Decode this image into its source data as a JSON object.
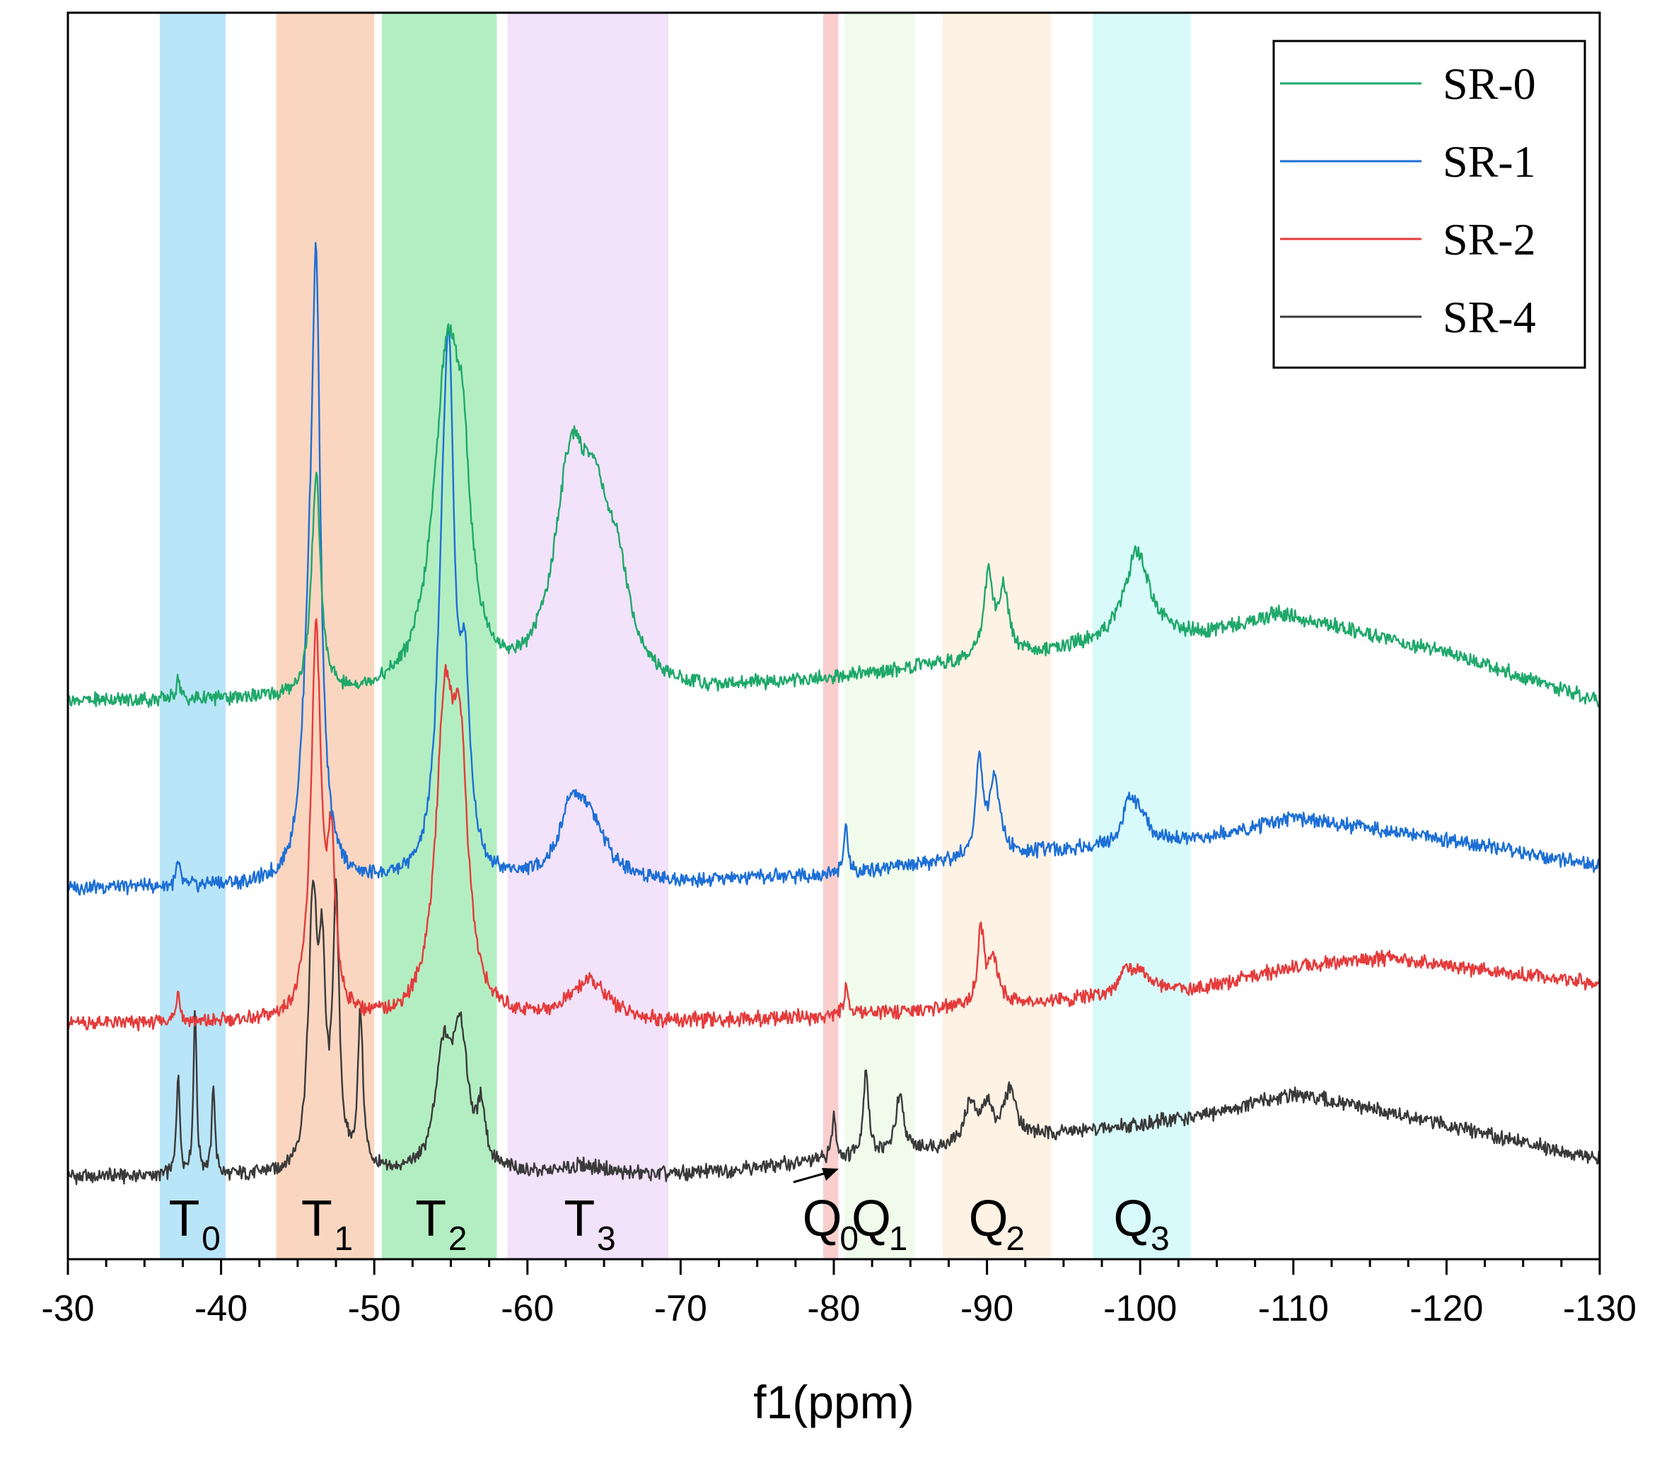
{
  "chart_data": {
    "type": "line",
    "title": "",
    "xlabel": "f1(ppm)",
    "ylabel": "",
    "xlim": [
      -30,
      -130
    ],
    "x_ticks": [
      -30,
      -40,
      -50,
      -60,
      -70,
      -80,
      -90,
      -100,
      -110,
      -120,
      -130
    ],
    "x_tick_labels": [
      "-30",
      "-40",
      "-50",
      "-60",
      "-70",
      "-80",
      "-90",
      "-100",
      "-110",
      "-120",
      "-130"
    ],
    "grid": false,
    "legend_position": "top-right",
    "regions": [
      {
        "main": "T",
        "sub": "0",
        "from": -36.0,
        "to": -40.3,
        "color": "#7fd0f2"
      },
      {
        "main": "T",
        "sub": "1",
        "from": -43.6,
        "to": -50.0,
        "color": "#f6b48c"
      },
      {
        "main": "T",
        "sub": "2",
        "from": -50.5,
        "to": -58.0,
        "color": "#74e08f"
      },
      {
        "main": "T",
        "sub": "3",
        "from": -58.7,
        "to": -69.2,
        "color": "#e8cbf6"
      },
      {
        "main": "Q",
        "sub": "0",
        "from": -79.3,
        "to": -80.3,
        "color": "#f7a5a5"
      },
      {
        "main": "Q",
        "sub": "1",
        "from": -80.7,
        "to": -85.3,
        "color": "#e4f7dc"
      },
      {
        "main": "Q",
        "sub": "2",
        "from": -87.1,
        "to": -94.2,
        "color": "#fde8d0"
      },
      {
        "main": "Q",
        "sub": "3",
        "from": -96.9,
        "to": -103.3,
        "color": "#b8f5f6"
      }
    ],
    "series": [
      {
        "name": "SR-4",
        "color": "#3a3a3a",
        "offset": 0.0,
        "baseline": [
          [
            -30,
            0.0
          ],
          [
            -70,
            0.01
          ],
          [
            -80,
            0.08
          ],
          [
            -90,
            0.16
          ],
          [
            -100,
            0.24
          ],
          [
            -104,
            0.28
          ],
          [
            -110,
            0.38
          ],
          [
            -120,
            0.24
          ],
          [
            -130,
            0.08
          ]
        ],
        "peaks": [
          [
            -37.2,
            0.48,
            0.12
          ],
          [
            -38.3,
            0.78,
            0.12
          ],
          [
            -39.5,
            0.42,
            0.12
          ],
          [
            -46.0,
            1.2,
            0.35
          ],
          [
            -46.6,
            0.8,
            0.25
          ],
          [
            -47.5,
            1.2,
            0.25
          ],
          [
            -49.1,
            0.7,
            0.2
          ],
          [
            -54.5,
            0.5,
            0.6
          ],
          [
            -55.6,
            0.62,
            0.6
          ],
          [
            -57.0,
            0.25,
            0.3
          ],
          [
            -63.8,
            0.04,
            1.5
          ],
          [
            -80.0,
            0.2,
            0.15
          ],
          [
            -82.1,
            0.4,
            0.2
          ],
          [
            -84.3,
            0.25,
            0.3
          ],
          [
            -88.9,
            0.18,
            0.4
          ],
          [
            -90.0,
            0.16,
            0.4
          ],
          [
            -91.5,
            0.22,
            0.5
          ]
        ]
      },
      {
        "name": "SR-2",
        "color": "#e53b3b",
        "offset": 0.7,
        "baseline": [
          [
            -30,
            0.0
          ],
          [
            -70,
            0.0
          ],
          [
            -80,
            0.03
          ],
          [
            -90,
            0.08
          ],
          [
            -100,
            0.13
          ],
          [
            -104,
            0.16
          ],
          [
            -110,
            0.26
          ],
          [
            -116,
            0.3
          ],
          [
            -130,
            0.18
          ]
        ],
        "peaks": [
          [
            -37.2,
            0.15,
            0.15
          ],
          [
            -46.2,
            1.75,
            0.4
          ],
          [
            -47.2,
            0.7,
            0.3
          ],
          [
            -54.6,
            1.3,
            0.7
          ],
          [
            -55.6,
            1.05,
            0.6
          ],
          [
            -64.0,
            0.18,
            1.6
          ],
          [
            -80.8,
            0.15,
            0.15
          ],
          [
            -89.6,
            0.33,
            0.25
          ],
          [
            -90.4,
            0.2,
            0.4
          ],
          [
            -99.0,
            0.1,
            0.5
          ],
          [
            -100.0,
            0.1,
            0.8
          ]
        ]
      },
      {
        "name": "SR-1",
        "color": "#1d6fd6",
        "offset": 1.32,
        "baseline": [
          [
            -30,
            0.0
          ],
          [
            -70,
            0.02
          ],
          [
            -80,
            0.06
          ],
          [
            -90,
            0.14
          ],
          [
            -100,
            0.2
          ],
          [
            -104,
            0.22
          ],
          [
            -110,
            0.32
          ],
          [
            -120,
            0.22
          ],
          [
            -130,
            0.1
          ]
        ],
        "peaks": [
          [
            -37.2,
            0.1,
            0.15
          ],
          [
            -45.7,
            0.7,
            0.5
          ],
          [
            -46.2,
            2.55,
            0.35
          ],
          [
            -54.5,
            1.0,
            0.5
          ],
          [
            -54.9,
            1.8,
            0.4
          ],
          [
            -55.9,
            0.8,
            0.4
          ],
          [
            -62.8,
            0.25,
            0.8
          ],
          [
            -64.0,
            0.28,
            1.3
          ],
          [
            -80.8,
            0.22,
            0.15
          ],
          [
            -89.5,
            0.45,
            0.25
          ],
          [
            -90.5,
            0.35,
            0.4
          ],
          [
            -99.3,
            0.17,
            0.5
          ],
          [
            -100.0,
            0.12,
            0.6
          ]
        ]
      },
      {
        "name": "SR-0",
        "color": "#1fa86a",
        "offset": 2.17,
        "baseline": [
          [
            -30,
            0.0
          ],
          [
            -60,
            0.0
          ],
          [
            -70,
            0.02
          ],
          [
            -80,
            0.1
          ],
          [
            -90,
            0.19
          ],
          [
            -100,
            0.28
          ],
          [
            -104,
            0.3
          ],
          [
            -109,
            0.4
          ],
          [
            -120,
            0.22
          ],
          [
            -130,
            0.0
          ]
        ],
        "peaks": [
          [
            -37.2,
            0.1,
            0.15
          ],
          [
            -46.2,
            1.0,
            0.35
          ],
          [
            -54.8,
            1.55,
            1.1
          ],
          [
            -55.8,
            0.55,
            0.5
          ],
          [
            -62.8,
            0.9,
            1.3
          ],
          [
            -64.5,
            0.65,
            1.3
          ],
          [
            -66.0,
            0.3,
            0.9
          ],
          [
            -90.1,
            0.38,
            0.35
          ],
          [
            -91.1,
            0.3,
            0.35
          ],
          [
            -99.8,
            0.4,
            1.0
          ]
        ]
      }
    ]
  }
}
